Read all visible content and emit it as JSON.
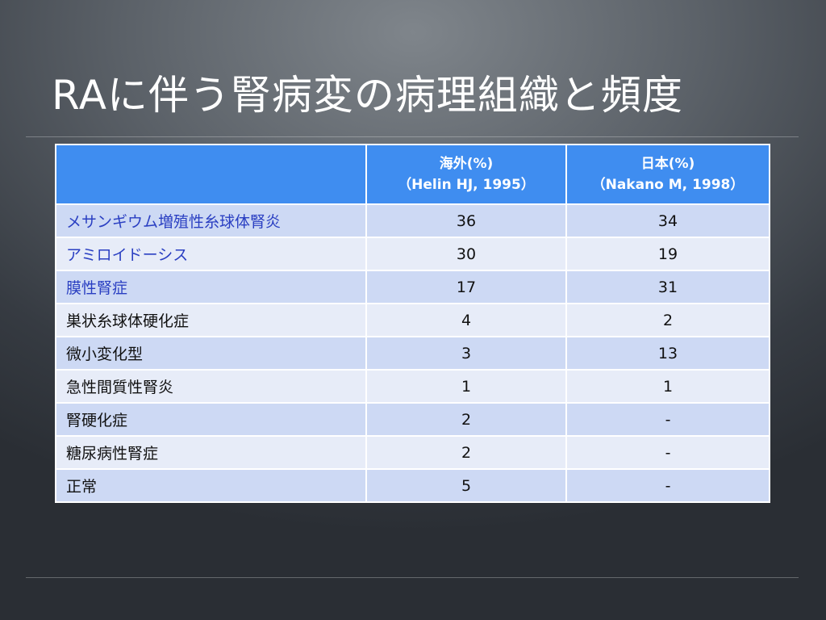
{
  "slide": {
    "title": "RAに伴う腎病変の病理組織と頻度"
  },
  "table": {
    "headers": [
      {
        "line1": "",
        "line2": ""
      },
      {
        "line1": "海外(%)",
        "line2": "（Helin HJ, 1995）"
      },
      {
        "line1": "日本(%)",
        "line2": "（Nakano M, 1998）"
      }
    ],
    "rows": [
      {
        "label": "メサンギウム増殖性糸球体腎炎",
        "overseas": "36",
        "japan": "34",
        "highlight": true
      },
      {
        "label": "アミロイドーシス",
        "overseas": "30",
        "japan": "19",
        "highlight": true
      },
      {
        "label": "膜性腎症",
        "overseas": "17",
        "japan": "31",
        "highlight": true
      },
      {
        "label": "巣状糸球体硬化症",
        "overseas": "4",
        "japan": "2",
        "highlight": false
      },
      {
        "label": "微小変化型",
        "overseas": "3",
        "japan": "13",
        "highlight": false
      },
      {
        "label": "急性間質性腎炎",
        "overseas": "1",
        "japan": "1",
        "highlight": false
      },
      {
        "label": "腎硬化症",
        "overseas": "2",
        "japan": "-",
        "highlight": false
      },
      {
        "label": "糖尿病性腎症",
        "overseas": "2",
        "japan": "-",
        "highlight": false
      },
      {
        "label": "正常",
        "overseas": "5",
        "japan": "-",
        "highlight": false
      }
    ]
  }
}
